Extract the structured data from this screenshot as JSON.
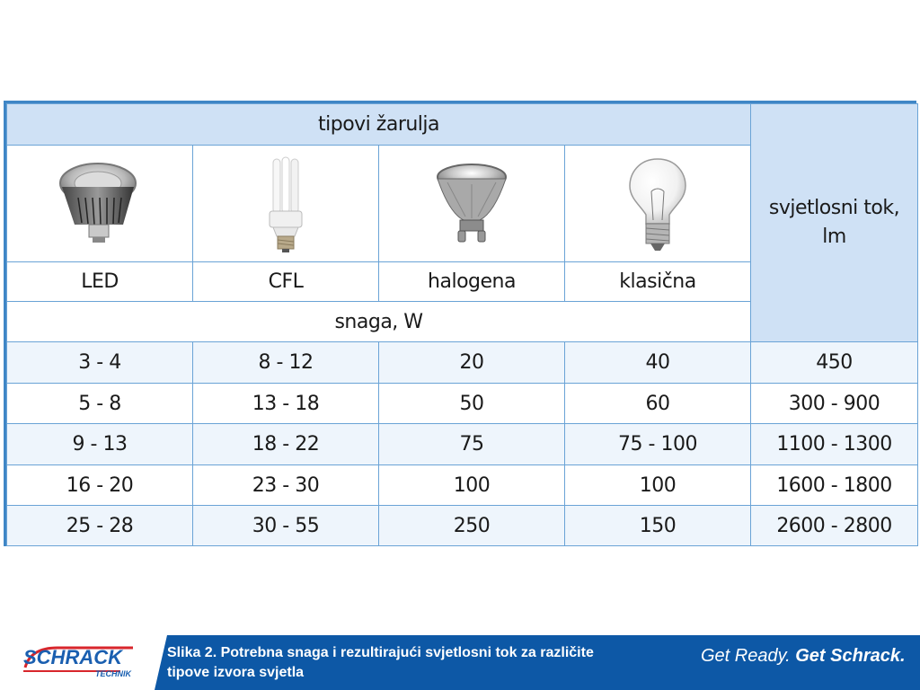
{
  "table": {
    "header_types": "tipovi žarulja",
    "header_flux_line1": "svjetlosni tok,",
    "header_flux_line2": "lm",
    "bulb_types": [
      "LED",
      "CFL",
      "halogena",
      "klasična"
    ],
    "power_label": "snaga, W",
    "rows": [
      [
        "3 - 4",
        "8 - 12",
        "20",
        "40",
        "450"
      ],
      [
        "5 - 8",
        "13 - 18",
        "50",
        "60",
        "300 - 900"
      ],
      [
        "9 - 13",
        "18 - 22",
        "75",
        "75 - 100",
        "1100 - 1300"
      ],
      [
        "16 - 20",
        "23 - 30",
        "100",
        "100",
        "1600 - 1800"
      ],
      [
        "25 - 28",
        "30 - 55",
        "250",
        "150",
        "2600 - 2800"
      ]
    ]
  },
  "footer": {
    "logo_text": "SCHRACK",
    "logo_sub": "TECHNIK",
    "caption_line1": "Slika 2. Potrebna snaga i rezultirajući svjetlosni tok za različite",
    "caption_line2": "tipove izvora svjetla",
    "slogan_part1": "Get Ready.",
    "slogan_part2": "Get Schrack."
  },
  "colors": {
    "header_blue": "#cfe1f5",
    "row_light": "#eef5fc",
    "border_blue": "#3f86c6",
    "footer_blue": "#0d58a6"
  }
}
